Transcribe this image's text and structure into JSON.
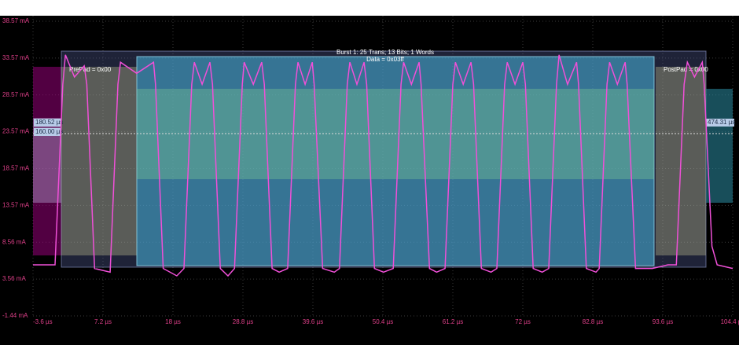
{
  "chart_data": {
    "type": "line",
    "color": "#f050d8",
    "grid": true,
    "ylim": [
      -1.44,
      38.57
    ],
    "xlim": [
      -3.6,
      104.4
    ],
    "yticks": [
      {
        "value": -1.44,
        "label": "-1.44 mA"
      },
      {
        "value": 3.56,
        "label": "3.56 mA"
      },
      {
        "value": 8.56,
        "label": "8.56 mA"
      },
      {
        "value": 13.57,
        "label": "13.57 mA"
      },
      {
        "value": 18.57,
        "label": "18.57 mA"
      },
      {
        "value": 23.57,
        "label": "23.57 mA"
      },
      {
        "value": 28.57,
        "label": "28.57 mA"
      },
      {
        "value": 33.57,
        "label": "33.57 mA"
      },
      {
        "value": 38.57,
        "label": "38.57 mA"
      }
    ],
    "xticks": [
      {
        "value": -3.6,
        "label": "-3.6 µs"
      },
      {
        "value": 7.2,
        "label": "7.2 µs"
      },
      {
        "value": 18,
        "label": "18 µs"
      },
      {
        "value": 28.8,
        "label": "28.8 µs"
      },
      {
        "value": 39.6,
        "label": "39.6 µs"
      },
      {
        "value": 50.4,
        "label": "50.4 µs"
      },
      {
        "value": 61.2,
        "label": "61.2 µs"
      },
      {
        "value": 72,
        "label": "72 µs"
      },
      {
        "value": 82.8,
        "label": "82.8 µs"
      },
      {
        "value": 93.6,
        "label": "93.6 µs"
      },
      {
        "value": 104.4,
        "label": "104.4 µs"
      }
    ],
    "x": [
      -3.6,
      -0.2,
      1.0,
      1.4,
      2.8,
      4.3,
      4.7,
      5.9,
      8.3,
      9.5,
      9.9,
      12.4,
      15.0,
      15.3,
      16.5,
      18.6,
      19.7,
      20.9,
      21.3,
      22.5,
      23.7,
      24.1,
      25.3,
      26.5,
      27.5,
      28.7,
      29.0,
      30.4,
      31.7,
      32.1,
      33.3,
      34.4,
      35.7,
      36.9,
      37.3,
      38.4,
      39.5,
      39.8,
      41.1,
      42.9,
      43.7,
      44.9,
      45.3,
      46.4,
      47.5,
      47.9,
      49.1,
      50.5,
      52.0,
      53.2,
      53.6,
      54.8,
      56.0,
      56.3,
      57.6,
      58.7,
      60.0,
      61.2,
      61.6,
      62.8,
      64.0,
      64.4,
      65.6,
      67.1,
      68.0,
      69.2,
      69.6,
      70.8,
      72.0,
      72.4,
      73.6,
      75.0,
      76.0,
      77.2,
      77.6,
      78.9,
      80.3,
      80.6,
      81.8,
      83.3,
      83.8,
      85.0,
      85.4,
      86.6,
      87.8,
      88.1,
      89.4,
      92.0,
      94.4,
      95.7,
      96.9,
      97.4,
      98.5,
      99.7,
      100.0,
      101.2,
      102.0,
      104.4
    ],
    "values": [
      5.5,
      5.5,
      30,
      34,
      31,
      32.5,
      30,
      5,
      4.5,
      30,
      33,
      31.5,
      33,
      30,
      5,
      4,
      5,
      30,
      33,
      30,
      33,
      30,
      5,
      4,
      5,
      30,
      33,
      30,
      33,
      30,
      5,
      4.5,
      5,
      30,
      33,
      30,
      33,
      30,
      5,
      4.5,
      5,
      30,
      33,
      30,
      33,
      30,
      5,
      4.5,
      5,
      30,
      33,
      30,
      33,
      30,
      5,
      4.5,
      5,
      30,
      33,
      30,
      33,
      30,
      5,
      4.5,
      5,
      30,
      33,
      30,
      33,
      30,
      5,
      4.5,
      5,
      30,
      34,
      30,
      33,
      30,
      5,
      4.5,
      5,
      30,
      33,
      30,
      33,
      30,
      5,
      5,
      5.5,
      5.5,
      30,
      33,
      31,
      33,
      30,
      8,
      5.5,
      5
    ],
    "annotations": {
      "burst": "Burst 1: 25 Trans; 13 Bits; 1 Words",
      "data": "Data = 0x03ff",
      "prepad": "PrePad = 0x00",
      "postpad": "PostPad = 0x00",
      "cursor_a": "180.52 µs",
      "cursor_b": "160.00 µs",
      "cursor_c": "474.31 µs"
    }
  }
}
